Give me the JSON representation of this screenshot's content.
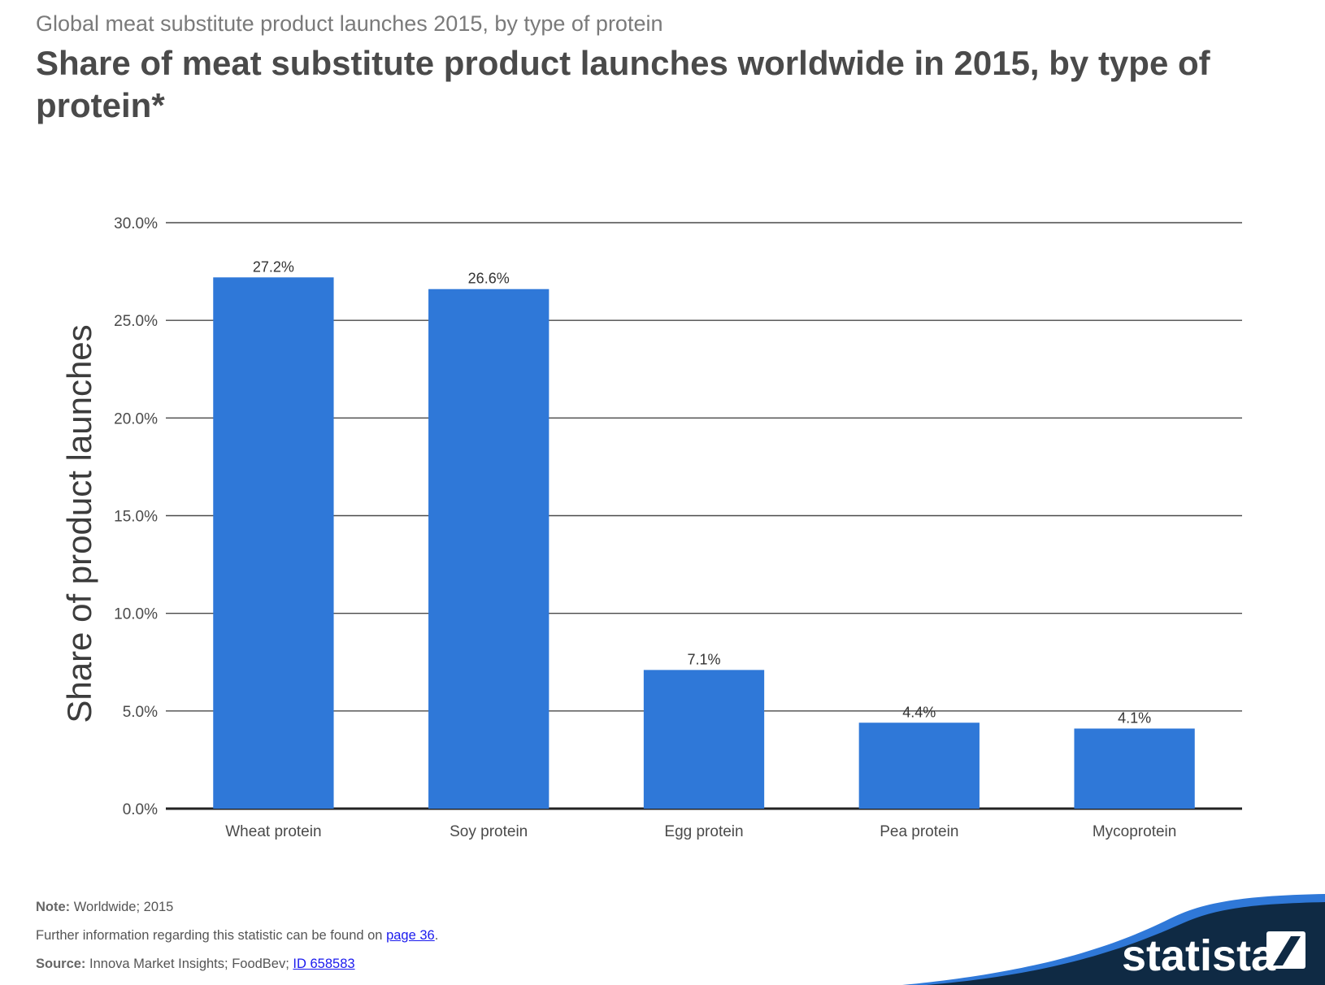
{
  "header": {
    "supertitle": "Global meat substitute product launches 2015, by type of protein",
    "title": "Share of meat substitute product launches worldwide in 2015, by type of protein*"
  },
  "chart_data": {
    "type": "bar",
    "title": "Share of meat substitute product launches worldwide in 2015, by type of protein*",
    "xlabel": "",
    "ylabel": "Share of product launches",
    "categories": [
      "Wheat protein",
      "Soy protein",
      "Egg protein",
      "Pea protein",
      "Mycoprotein"
    ],
    "values": [
      27.2,
      26.6,
      7.1,
      4.4,
      4.1
    ],
    "data_labels": [
      "27.2%",
      "26.6%",
      "7.1%",
      "4.4%",
      "4.1%"
    ],
    "ylim": [
      0,
      30
    ],
    "yticks": [
      0,
      5,
      10,
      15,
      20,
      25,
      30
    ],
    "ytick_labels": [
      "0.0%",
      "5.0%",
      "10.0%",
      "15.0%",
      "20.0%",
      "25.0%",
      "30.0%"
    ],
    "grid": true,
    "legend": "none",
    "bar_color": "#2f78d8"
  },
  "footer": {
    "note_label": "Note:",
    "note_text": " Worldwide; 2015",
    "further_text": "Further information regarding this statistic can be found on ",
    "further_link": "page 36",
    "further_end": ".",
    "source_label": "Source:",
    "source_text": " Innova Market Insights; FoodBev; ",
    "source_link": "ID 658583"
  },
  "brand": {
    "name": "statista",
    "dark_color": "#0f2a44",
    "accent_color": "#2f78d8"
  }
}
